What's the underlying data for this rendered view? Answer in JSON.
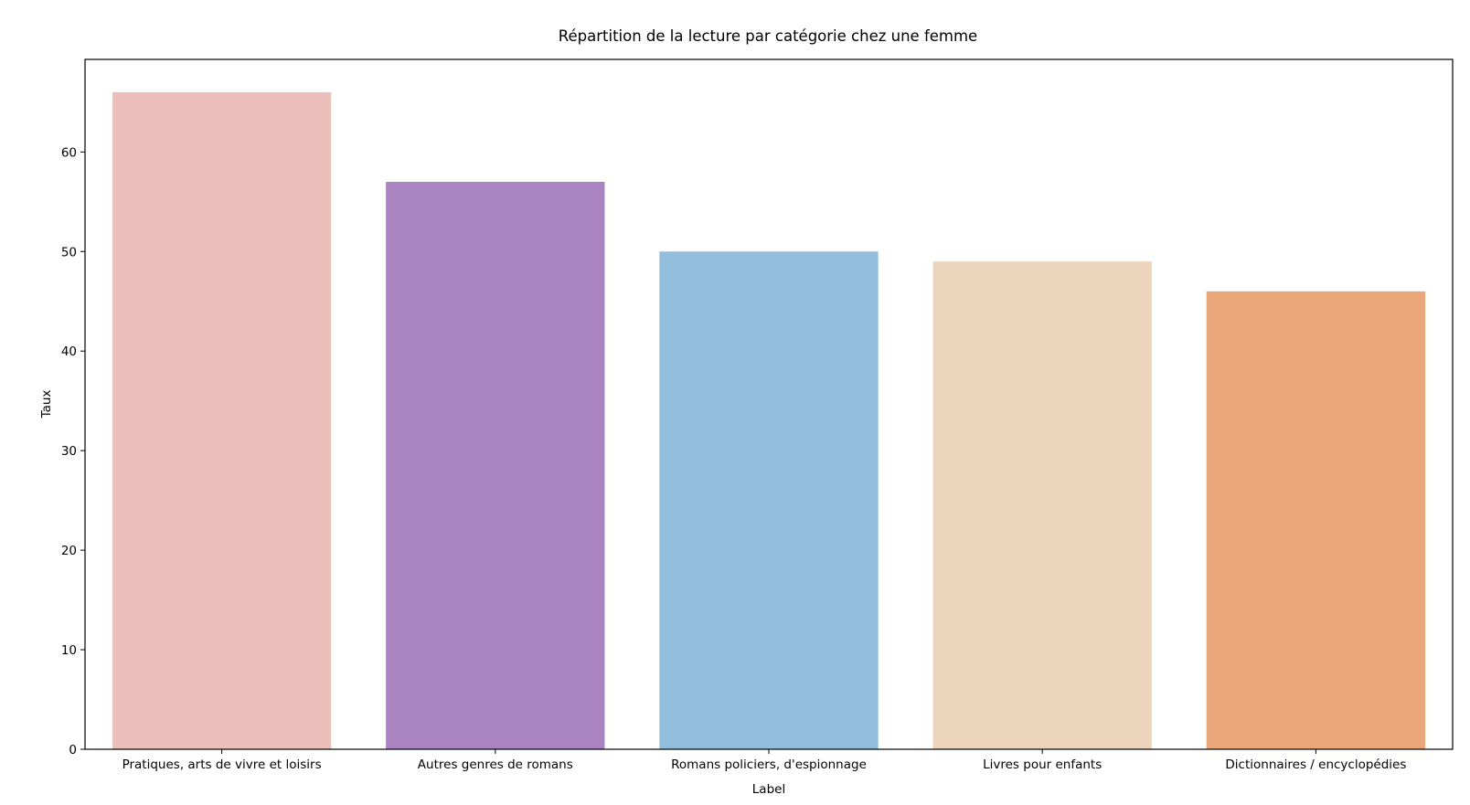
{
  "chart_data": {
    "type": "bar",
    "title": "Répartition de la lecture par catégorie chez une femme",
    "xlabel": "Label",
    "ylabel": "Taux",
    "categories": [
      "Pratiques, arts de vivre et loisirs",
      "Autres genres de romans",
      "Romans policiers, d'espionnage",
      "Livres pour enfants",
      "Dictionnaires / encyclopédies"
    ],
    "values": [
      66,
      57,
      50,
      49,
      46
    ],
    "colors": [
      "#ecbfbb",
      "#aa84c0",
      "#93bddd",
      "#edd4bc",
      "#eaa87a"
    ],
    "ylim": [
      0,
      69.3
    ],
    "yticks": [
      0,
      10,
      20,
      30,
      40,
      50,
      60
    ],
    "grid": false,
    "legend": "none"
  }
}
